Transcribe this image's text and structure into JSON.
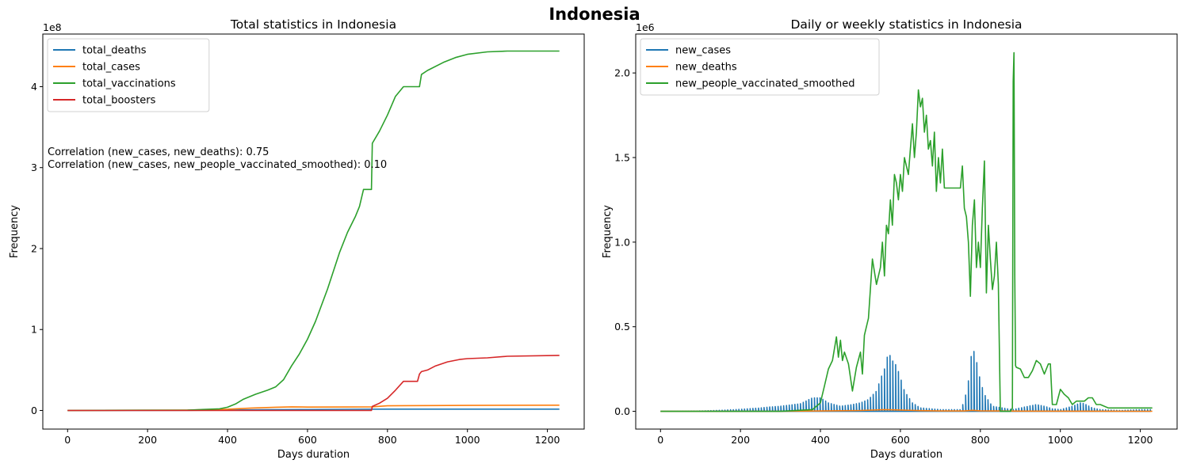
{
  "figure": {
    "suptitle": "Indonesia"
  },
  "chart_data": [
    {
      "type": "line",
      "title": "Total statistics in Indonesia",
      "xlabel": "Days duration",
      "ylabel": "Frequency",
      "y_scale_label": "1e8",
      "xlim": [
        -62,
        1292
      ],
      "ylim": [
        -2.3,
        46.5
      ],
      "y_unit": "1e7",
      "x_ticks": [
        0,
        200,
        400,
        600,
        800,
        1000,
        1200
      ],
      "y_ticks": [
        0,
        10,
        20,
        30,
        40
      ],
      "y_tick_labels": [
        "0",
        "1",
        "2",
        "3",
        "4"
      ],
      "legend_position": "upper left",
      "grid": false,
      "annotations": [
        "Correlation (new_cases, new_deaths): 0.75",
        "Correlation (new_cases, new_people_vaccinated_smoothed): 0.10"
      ],
      "series": [
        {
          "name": "total_deaths",
          "color": "#1f77b4",
          "x": [
            0,
            300,
            400,
            480,
            600,
            700,
            800,
            1000,
            1230
          ],
          "y": [
            0,
            0.02,
            0.05,
            0.1,
            0.12,
            0.14,
            0.16,
            0.16,
            0.16
          ]
        },
        {
          "name": "total_cases",
          "color": "#ff7f0e",
          "x": [
            0,
            300,
            400,
            460,
            520,
            560,
            600,
            700,
            760,
            800,
            900,
            1000,
            1100,
            1230
          ],
          "y": [
            0,
            0.05,
            0.15,
            0.3,
            0.4,
            0.45,
            0.42,
            0.43,
            0.45,
            0.58,
            0.6,
            0.62,
            0.64,
            0.65
          ]
        },
        {
          "name": "total_vaccinations",
          "color": "#2ca02c",
          "x": [
            0,
            300,
            380,
            400,
            420,
            440,
            470,
            500,
            520,
            540,
            560,
            580,
            600,
            620,
            650,
            680,
            700,
            720,
            730,
            740,
            760,
            762,
            780,
            800,
            820,
            840,
            860,
            880,
            885,
            900,
            940,
            970,
            1000,
            1050,
            1100,
            1150,
            1230
          ],
          "y": [
            0,
            0.05,
            0.2,
            0.4,
            0.8,
            1.4,
            2.0,
            2.5,
            2.9,
            3.8,
            5.5,
            7.0,
            8.8,
            11.0,
            15.0,
            19.5,
            22.0,
            24.0,
            25.2,
            27.3,
            27.3,
            33.0,
            34.5,
            36.5,
            38.8,
            40.0,
            40.0,
            40.0,
            41.5,
            42.0,
            43.0,
            43.6,
            44.0,
            44.3,
            44.4,
            44.4,
            44.4
          ]
        },
        {
          "name": "total_boosters",
          "color": "#d62728",
          "x": [
            0,
            400,
            750,
            760,
            762,
            780,
            800,
            820,
            840,
            860,
            875,
            880,
            885,
            900,
            920,
            950,
            980,
            1000,
            1050,
            1100,
            1230
          ],
          "y": [
            0,
            0,
            0,
            0,
            0.5,
            0.9,
            1.5,
            2.5,
            3.6,
            3.6,
            3.6,
            4.5,
            4.8,
            5.0,
            5.5,
            6.0,
            6.3,
            6.4,
            6.5,
            6.7,
            6.8
          ]
        }
      ]
    },
    {
      "type": "line",
      "title": "Daily or weekly statistics in Indonesia",
      "xlabel": "Days duration",
      "ylabel": "Frequency",
      "y_scale_label": "1e6",
      "xlim": [
        -62,
        1292
      ],
      "ylim": [
        -0.105,
        2.23
      ],
      "y_unit": "1e6",
      "x_ticks": [
        0,
        200,
        400,
        600,
        800,
        1000,
        1200
      ],
      "y_ticks": [
        0,
        0.5,
        1.0,
        1.5,
        2.0
      ],
      "y_tick_labels": [
        "0.0",
        "0.5",
        "1.0",
        "1.5",
        "2.0"
      ],
      "legend_position": "upper left",
      "grid": false,
      "series": [
        {
          "name": "new_cases",
          "color": "#1f77b4",
          "style": "weekly-spikes",
          "x": [
            0,
            100,
            150,
            200,
            250,
            270,
            300,
            350,
            380,
            400,
            420,
            450,
            480,
            500,
            520,
            540,
            550,
            560,
            570,
            580,
            590,
            600,
            610,
            630,
            650,
            700,
            750,
            760,
            770,
            775,
            780,
            790,
            800,
            810,
            830,
            880,
            920,
            940,
            960,
            980,
            1000,
            1030,
            1050,
            1060,
            1080,
            1100,
            1150,
            1200,
            1230
          ],
          "y": [
            0,
            0.002,
            0.006,
            0.012,
            0.02,
            0.025,
            0.03,
            0.045,
            0.08,
            0.08,
            0.05,
            0.03,
            0.04,
            0.05,
            0.07,
            0.12,
            0.19,
            0.25,
            0.35,
            0.3,
            0.27,
            0.2,
            0.12,
            0.05,
            0.02,
            0.01,
            0.01,
            0.06,
            0.18,
            0.28,
            0.39,
            0.3,
            0.18,
            0.1,
            0.03,
            0.01,
            0.03,
            0.04,
            0.03,
            0.015,
            0.01,
            0.03,
            0.05,
            0.045,
            0.02,
            0.01,
            0.005,
            0.01,
            0.01
          ]
        },
        {
          "name": "new_deaths",
          "color": "#ff7f0e",
          "x": [
            0,
            300,
            400,
            500,
            560,
            600,
            650,
            700,
            760,
            780,
            800,
            900,
            1230
          ],
          "y": [
            0,
            0.0005,
            0.002,
            0.005,
            0.01,
            0.008,
            0.004,
            0.002,
            0.002,
            0.006,
            0.003,
            0.001,
            0.0005
          ]
        },
        {
          "name": "new_people_vaccinated_smoothed",
          "color": "#2ca02c",
          "x": [
            0,
            300,
            380,
            400,
            410,
            420,
            430,
            440,
            445,
            450,
            455,
            460,
            470,
            480,
            490,
            500,
            505,
            510,
            520,
            530,
            540,
            550,
            555,
            560,
            565,
            570,
            575,
            580,
            585,
            590,
            595,
            600,
            605,
            610,
            615,
            620,
            625,
            630,
            635,
            640,
            645,
            650,
            655,
            660,
            665,
            670,
            675,
            680,
            685,
            690,
            695,
            700,
            705,
            710,
            720,
            730,
            740,
            750,
            755,
            760,
            765,
            770,
            775,
            780,
            785,
            790,
            795,
            800,
            805,
            810,
            815,
            820,
            825,
            830,
            835,
            840,
            845,
            850,
            860,
            870,
            875,
            880,
            882,
            884,
            886,
            888,
            890,
            900,
            910,
            920,
            930,
            940,
            950,
            960,
            970,
            975,
            980,
            990,
            1000,
            1010,
            1020,
            1030,
            1040,
            1050,
            1060,
            1070,
            1080,
            1090,
            1100,
            1120,
            1150,
            1200,
            1230
          ],
          "y": [
            0,
            0,
            0.01,
            0.05,
            0.15,
            0.25,
            0.3,
            0.44,
            0.32,
            0.42,
            0.3,
            0.35,
            0.28,
            0.12,
            0.26,
            0.35,
            0.22,
            0.45,
            0.55,
            0.9,
            0.75,
            0.85,
            1.0,
            0.8,
            1.1,
            1.05,
            1.25,
            1.1,
            1.4,
            1.35,
            1.25,
            1.4,
            1.3,
            1.5,
            1.45,
            1.4,
            1.55,
            1.7,
            1.5,
            1.65,
            1.9,
            1.8,
            1.85,
            1.65,
            1.75,
            1.55,
            1.6,
            1.45,
            1.65,
            1.3,
            1.5,
            1.35,
            1.55,
            1.32,
            1.32,
            1.32,
            1.32,
            1.32,
            1.45,
            1.2,
            1.15,
            1.0,
            0.68,
            1.1,
            1.25,
            0.85,
            1.0,
            0.85,
            1.2,
            1.48,
            0.7,
            1.1,
            0.9,
            0.72,
            0.8,
            1.0,
            0.75,
            0.0,
            0.0,
            0.0,
            0.0,
            0.02,
            1.95,
            2.12,
            0.8,
            0.27,
            0.26,
            0.25,
            0.2,
            0.2,
            0.24,
            0.3,
            0.28,
            0.22,
            0.28,
            0.28,
            0.04,
            0.04,
            0.13,
            0.1,
            0.08,
            0.04,
            0.06,
            0.06,
            0.06,
            0.08,
            0.08,
            0.04,
            0.04,
            0.02,
            0.02,
            0.02,
            0.02
          ]
        }
      ]
    }
  ]
}
